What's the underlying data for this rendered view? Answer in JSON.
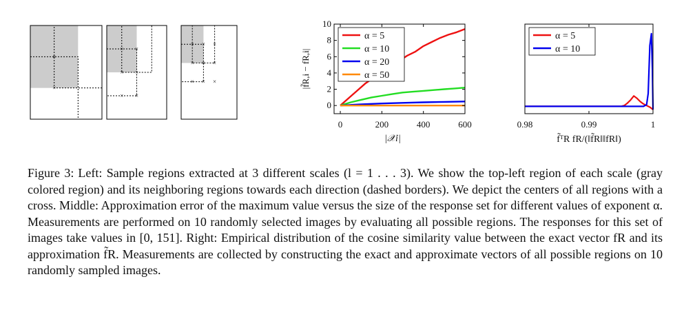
{
  "regions": {
    "panels": [
      {
        "name": "scale-1",
        "grid": 2,
        "crosses": [
          [
            0,
            0
          ],
          [
            0,
            1
          ]
        ]
      },
      {
        "name": "scale-2",
        "grid": 3,
        "crosses": [
          [
            0,
            0
          ],
          [
            1,
            0
          ],
          [
            0,
            1
          ],
          [
            1,
            1
          ],
          [
            0,
            2
          ],
          [
            1,
            2
          ]
        ]
      },
      {
        "name": "scale-3",
        "grid": 4,
        "crosses": [
          [
            0,
            0
          ],
          [
            1,
            0
          ],
          [
            2,
            0
          ],
          [
            0,
            1
          ],
          [
            1,
            1
          ],
          [
            2,
            1
          ],
          [
            0,
            2
          ],
          [
            1,
            2
          ],
          [
            2,
            2
          ]
        ]
      }
    ],
    "colors": {
      "gray": "#cccccc",
      "border": "#000000"
    }
  },
  "chart_data": [
    {
      "type": "line",
      "name": "approximation-error",
      "xlabel": "|𝒳i|",
      "ylabel": "|f̃R,i − fR,i|",
      "xlim": [
        -30,
        600
      ],
      "ylim": [
        -1,
        10
      ],
      "xticks": [
        0,
        200,
        400,
        600
      ],
      "yticks": [
        0,
        2,
        4,
        6,
        8,
        10
      ],
      "legend_position": "top-left",
      "series": [
        {
          "label": "α = 5",
          "color": "#ee1111",
          "x": [
            0,
            40,
            80,
            120,
            160,
            200,
            240,
            280,
            320,
            360,
            400,
            440,
            480,
            520,
            560,
            600
          ],
          "y": [
            0,
            0.9,
            1.8,
            2.7,
            3.4,
            4.2,
            4.8,
            5.4,
            6.1,
            6.6,
            7.3,
            7.8,
            8.3,
            8.7,
            9.0,
            9.4
          ]
        },
        {
          "label": "α = 10",
          "color": "#22dd22",
          "x": [
            0,
            50,
            100,
            150,
            200,
            250,
            300,
            350,
            400,
            450,
            500,
            550,
            600
          ],
          "y": [
            0,
            0.4,
            0.7,
            1.0,
            1.2,
            1.4,
            1.6,
            1.7,
            1.8,
            1.9,
            2.0,
            2.1,
            2.2
          ]
        },
        {
          "label": "α = 20",
          "color": "#0000ee",
          "x": [
            0,
            100,
            200,
            300,
            400,
            500,
            600
          ],
          "y": [
            0,
            0.15,
            0.25,
            0.33,
            0.4,
            0.45,
            0.5
          ]
        },
        {
          "label": "α = 50",
          "color": "#ff8800",
          "x": [
            0,
            600
          ],
          "y": [
            0,
            0
          ]
        }
      ]
    },
    {
      "type": "line",
      "name": "cosine-distribution",
      "xlabel": "f̃ᵀR fR/(‖f̃R‖‖fR‖)",
      "xlim": [
        0.98,
        1.0
      ],
      "xticks": [
        0.98,
        0.99,
        1
      ],
      "xtick_labels": [
        "0.98",
        "0.99",
        "1"
      ],
      "ylim": [
        0,
        1
      ],
      "legend_position": "top-left",
      "series": [
        {
          "label": "α = 5",
          "color": "#ee1111",
          "x": [
            0.98,
            0.995,
            0.9955,
            0.996,
            0.9965,
            0.997,
            0.9975,
            0.998,
            0.9985,
            0.999,
            0.9995,
            1.0
          ],
          "y": [
            0.04,
            0.04,
            0.05,
            0.08,
            0.12,
            0.17,
            0.14,
            0.1,
            0.07,
            0.05,
            0.03,
            0.0
          ]
        },
        {
          "label": "α = 10",
          "color": "#0000ee",
          "x": [
            0.98,
            0.998,
            0.9985,
            0.999,
            0.99925,
            0.9995,
            0.99975,
            0.9999,
            1.0
          ],
          "y": [
            0.04,
            0.04,
            0.04,
            0.06,
            0.2,
            0.8,
            0.95,
            0.5,
            0.0
          ]
        }
      ]
    }
  ],
  "caption": {
    "label": "Figure 3:",
    "text": "Left: Sample regions extracted at 3 different scales (l = 1 . . . 3). We show the top-left region of each scale (gray colored region) and its neighboring regions towards each direction (dashed borders). We depict the centers of all regions with a cross. Middle: Approximation error of the maximum value versus the size of the response set for different values of exponent α. Measurements are performed on 10 randomly selected images by evaluating all possible regions. The responses for this set of images take values in [0, 151]. Right: Empirical distribution of the cosine similarity value between the exact vector fR and its approximation f̃R. Measurements are collected by constructing the exact and approximate vectors of all possible regions on 10 randomly sampled images."
  }
}
